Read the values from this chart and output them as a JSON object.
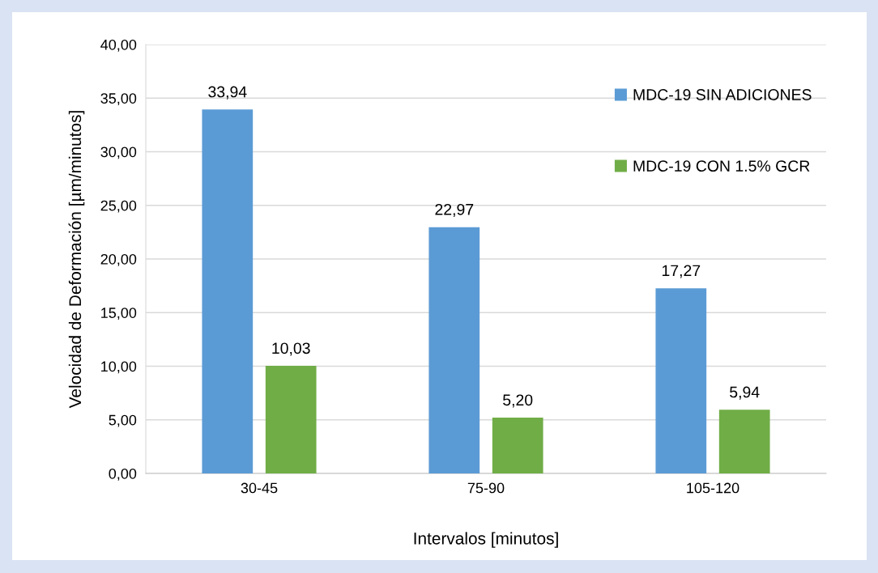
{
  "chart_data": {
    "type": "bar",
    "xlabel": "Intervalos [minutos]",
    "ylabel": "Velocidad de Deformación [µm/minutos]",
    "categories": [
      "30-45",
      "75-90",
      "105-120"
    ],
    "series": [
      {
        "name": "MDC-19 SIN ADICIONES",
        "color": "#5b9bd5",
        "values": [
          33.94,
          22.97,
          17.27
        ],
        "value_labels": [
          "33,94",
          "22,97",
          "17,27"
        ]
      },
      {
        "name": "MDC-19 CON 1.5% GCR",
        "color": "#70ad47",
        "values": [
          10.03,
          5.2,
          5.94
        ],
        "value_labels": [
          "10,03",
          "5,20",
          "5,94"
        ]
      }
    ],
    "ylim": [
      0,
      40
    ],
    "yticks": [
      {
        "value": 0,
        "label": "0,00"
      },
      {
        "value": 5,
        "label": "5,00"
      },
      {
        "value": 10,
        "label": "10,00"
      },
      {
        "value": 15,
        "label": "15,00"
      },
      {
        "value": 20,
        "label": "20,00"
      },
      {
        "value": 25,
        "label": "25,00"
      },
      {
        "value": 30,
        "label": "30,00"
      },
      {
        "value": 35,
        "label": "35,00"
      },
      {
        "value": 40,
        "label": "40,00"
      }
    ],
    "grid": "y",
    "legend": "top right"
  }
}
